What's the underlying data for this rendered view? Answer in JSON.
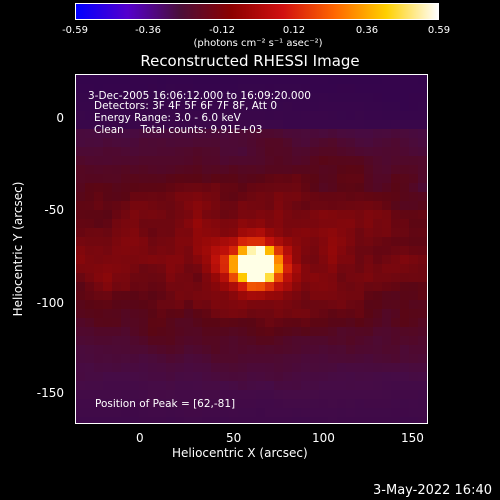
{
  "colorbar": {
    "ticks": [
      "-0.59",
      "-0.36",
      "-0.12",
      "0.12",
      "0.36",
      "0.59"
    ],
    "unit": "(photons cm⁻² s⁻¹ asec⁻²)"
  },
  "title": "Reconstructed RHESSI Image",
  "info": {
    "line1": "3-Dec-2005 16:06:12.000 to 16:09:20.000",
    "line2": "Detectors: 3F 4F 5F 6F 7F 8F, Att 0",
    "line3": "Energy Range: 3.0 - 6.0 keV",
    "line4": "Clean     Total counts: 9.91E+03",
    "peak": "Position of Peak = [62,-81]"
  },
  "axes": {
    "xlabel": "Heliocentric X (arcsec)",
    "ylabel": "Heliocentric Y (arcsec)",
    "xticks": [
      "0",
      "50",
      "100",
      "150"
    ],
    "yticks": [
      "0",
      "-50",
      "-100",
      "-150"
    ]
  },
  "footer": "3-May-2022 16:40",
  "colors": {
    "background": "#000000",
    "colormap": [
      "#0000ff",
      "#5500cc",
      "#4a0e3a",
      "#8b0000",
      "#d01010",
      "#ff6600",
      "#ffd000",
      "#ffffff"
    ]
  }
}
